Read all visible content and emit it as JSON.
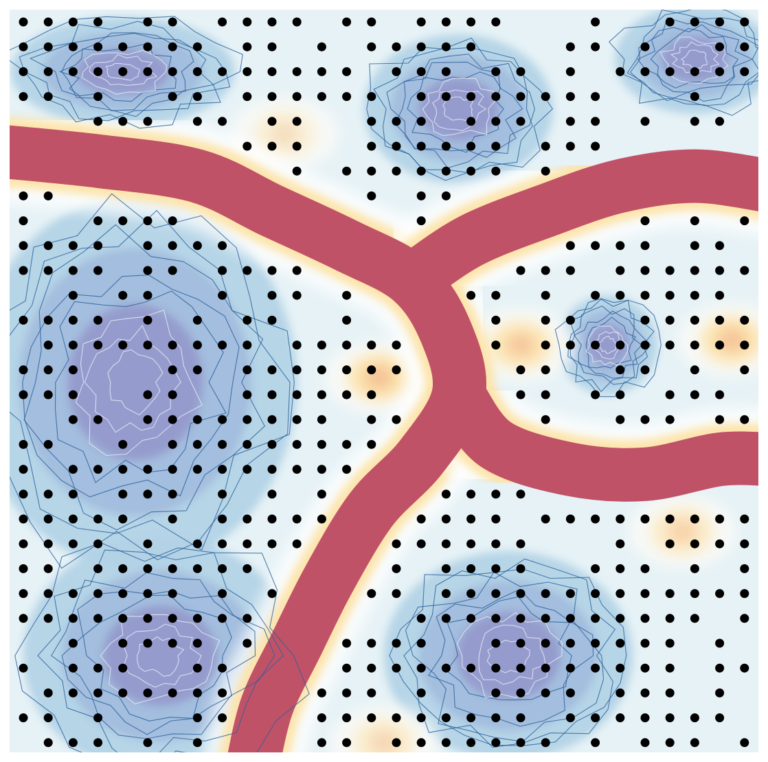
{
  "chart_data": {
    "type": "heatmap",
    "title": "",
    "xlabel": "",
    "ylabel": "",
    "grid": false,
    "legend": "none",
    "colormap": {
      "low": "#8a80c0",
      "mid_low": "#c7e4ef",
      "mid": "#f8f9f7",
      "mid_high": "#fde3a8",
      "high": "#c05268"
    },
    "contour_color": "#2a5f9a",
    "marker_color": "#000000",
    "grid_points": {
      "columns": 30,
      "rows": 30,
      "x_range": [
        0,
        29
      ],
      "y_range": [
        0,
        29
      ],
      "note_free": true
    },
    "channels": [
      {
        "name": "",
        "path": [
          [
            -1,
            5.2
          ],
          [
            3,
            5.6
          ],
          [
            7,
            6.2
          ],
          [
            10,
            7.6
          ],
          [
            13,
            9.0
          ],
          [
            15.6,
            10.4
          ],
          [
            17,
            12.5
          ],
          [
            17.5,
            15.0
          ],
          [
            16,
            17.5
          ],
          [
            14,
            19.6
          ],
          [
            12.3,
            22.4
          ],
          [
            11,
            25.0
          ],
          [
            9.8,
            27.5
          ],
          [
            9.2,
            30
          ]
        ]
      },
      {
        "name": "",
        "path": [
          [
            15.6,
            10.4
          ],
          [
            18,
            8.8
          ],
          [
            21,
            7.6
          ],
          [
            24,
            6.6
          ],
          [
            27,
            6.2
          ],
          [
            30,
            6.6
          ]
        ]
      },
      {
        "name": "",
        "path": [
          [
            17.5,
            15.0
          ],
          [
            19,
            17.0
          ],
          [
            22,
            18.0
          ],
          [
            25,
            18.2
          ],
          [
            28,
            17.6
          ],
          [
            30,
            17.6
          ]
        ]
      }
    ],
    "blue_regions": [
      {
        "center": [
          4.5,
          14.5
        ],
        "radius": [
          6.5,
          7.5
        ]
      },
      {
        "center": [
          5.5,
          25.5
        ],
        "radius": [
          5.5,
          4.8
        ]
      },
      {
        "center": [
          17.5,
          3.5
        ],
        "radius": [
          3.8,
          3.0
        ]
      },
      {
        "center": [
          19.5,
          25.5
        ],
        "radius": [
          5.0,
          4.2
        ]
      },
      {
        "center": [
          27,
          1.5
        ],
        "radius": [
          3.2,
          2.2
        ]
      },
      {
        "center": [
          23.5,
          13.0
        ],
        "radius": [
          2.0,
          2.0
        ]
      },
      {
        "center": [
          4,
          2.0
        ],
        "radius": [
          4.5,
          2.2
        ]
      }
    ],
    "warm_spots": [
      {
        "center": [
          14.3,
          14.3
        ],
        "strength": 0.9
      },
      {
        "center": [
          20.0,
          13.0
        ],
        "strength": 0.8
      },
      {
        "center": [
          28.5,
          12.8
        ],
        "strength": 0.85
      },
      {
        "center": [
          26.5,
          20.5
        ],
        "strength": 0.6
      },
      {
        "center": [
          10.5,
          4.5
        ],
        "strength": 0.4
      },
      {
        "center": [
          14.5,
          29.0
        ],
        "strength": 0.5
      }
    ]
  }
}
